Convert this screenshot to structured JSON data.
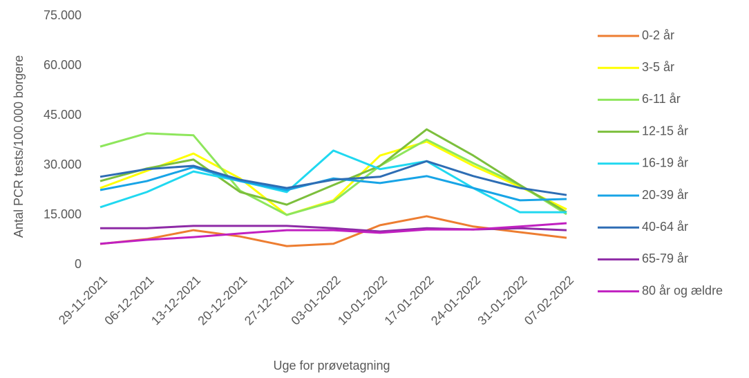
{
  "chart_data": {
    "type": "line",
    "x_label": "Uge for prøvetagning",
    "y_label": "Antal PCR tests/100.000 borgere",
    "categories": [
      "29-11-2021",
      "06-12-2021",
      "13-12-2021",
      "20-12-2021",
      "27-12-2021",
      "03-01-2022",
      "10-01-2022",
      "17-01-2022",
      "24-01-2022",
      "31-01-2022",
      "07-02-2022"
    ],
    "ylim": [
      0,
      75000
    ],
    "yticks": [
      0,
      {
        "value": 15000,
        "label": "15.000"
      },
      {
        "value": 30000,
        "label": "30.000"
      },
      {
        "value": 45000,
        "label": "45.000"
      },
      {
        "value": 60000,
        "label": "60.000"
      },
      {
        "value": 75000,
        "label": "75.000"
      }
    ],
    "legend": "right",
    "series": [
      {
        "name": "0-2 år",
        "color": "#ed7d31",
        "values": [
          6250,
          7700,
          10400,
          8500,
          5600,
          6300,
          11900,
          14600,
          11500,
          9800,
          8100
        ]
      },
      {
        "name": "3-5 år",
        "color": "#ffff00",
        "values": [
          23100,
          28300,
          33500,
          26000,
          15000,
          19400,
          32900,
          37100,
          29800,
          23500,
          16700
        ]
      },
      {
        "name": "6-11 år",
        "color": "#8ee65c",
        "values": [
          35600,
          39600,
          39000,
          22300,
          15000,
          19000,
          29800,
          37700,
          30600,
          24000,
          15200
        ]
      },
      {
        "name": "12-15 år",
        "color": "#7cbf3c",
        "values": [
          25200,
          29000,
          31700,
          21900,
          18100,
          24000,
          29800,
          40800,
          32900,
          24000,
          15800
        ]
      },
      {
        "name": "16-19 år",
        "color": "#20d8f0",
        "values": [
          17300,
          21900,
          28100,
          25200,
          21900,
          34400,
          28800,
          31200,
          23100,
          15800,
          15800
        ]
      },
      {
        "name": "20-39 år",
        "color": "#18a4e6",
        "values": [
          22500,
          25200,
          29400,
          25200,
          22500,
          26000,
          24600,
          26700,
          23100,
          19400,
          19800
        ]
      },
      {
        "name": "40-64 år",
        "color": "#2e6db4",
        "values": [
          26500,
          28800,
          29800,
          25600,
          23100,
          25600,
          26500,
          31200,
          26700,
          23100,
          21000
        ]
      },
      {
        "name": "65-79 år",
        "color": "#8e2aa6",
        "values": [
          11000,
          11000,
          11700,
          11700,
          11700,
          11000,
          10000,
          11000,
          10600,
          11000,
          10400
        ]
      },
      {
        "name": "80 år og ældre",
        "color": "#c020c0",
        "values": [
          6300,
          7500,
          8300,
          9400,
          10400,
          10400,
          9600,
          10600,
          10600,
          11500,
          12500
        ]
      }
    ]
  }
}
